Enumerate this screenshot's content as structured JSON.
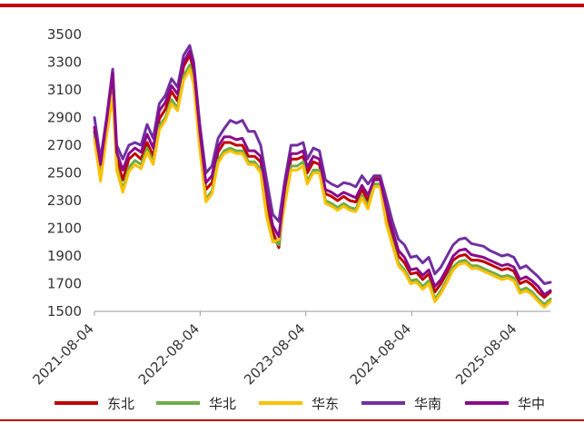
{
  "chart_data": {
    "type": "line",
    "title": "",
    "xlabel": "",
    "ylabel": "",
    "x_ticks": [
      "2021-08-04",
      "2022-08-04",
      "2023-08-04",
      "2024-08-04",
      "2025-08-04"
    ],
    "ylim": [
      1500,
      3500
    ],
    "y_ticks": [
      1500,
      1700,
      1900,
      2100,
      2300,
      2500,
      2700,
      2900,
      3100,
      3300,
      3500
    ],
    "grid": false,
    "legend": "bottom",
    "x": [
      "2021-08-04",
      "2021-08-25",
      "2021-09-15",
      "2021-10-06",
      "2021-10-20",
      "2021-11-10",
      "2021-12-01",
      "2021-12-22",
      "2022-01-12",
      "2022-02-02",
      "2022-02-23",
      "2022-03-16",
      "2022-04-06",
      "2022-04-27",
      "2022-05-18",
      "2022-06-08",
      "2022-06-29",
      "2022-07-13",
      "2022-08-03",
      "2022-08-24",
      "2022-09-14",
      "2022-10-05",
      "2022-10-26",
      "2022-11-16",
      "2022-12-07",
      "2022-12-28",
      "2023-01-18",
      "2023-02-08",
      "2023-03-01",
      "2023-03-22",
      "2023-04-12",
      "2023-05-03",
      "2023-05-24",
      "2023-06-14",
      "2023-07-05",
      "2023-07-26",
      "2023-08-09",
      "2023-08-30",
      "2023-09-20",
      "2023-10-11",
      "2023-11-01",
      "2023-11-22",
      "2023-12-13",
      "2024-01-03",
      "2024-01-24",
      "2024-02-14",
      "2024-03-06",
      "2024-03-27",
      "2024-04-17",
      "2024-05-08",
      "2024-05-29",
      "2024-06-19",
      "2024-07-10",
      "2024-07-31",
      "2024-08-21",
      "2024-09-11",
      "2024-10-02",
      "2024-10-23",
      "2024-11-13",
      "2024-12-04",
      "2024-12-25",
      "2025-01-15",
      "2025-02-05",
      "2025-02-26",
      "2025-03-19",
      "2025-04-09",
      "2025-04-30",
      "2025-05-21",
      "2025-06-11",
      "2025-07-02",
      "2025-07-23",
      "2025-08-13",
      "2025-09-03",
      "2025-09-24",
      "2025-10-15",
      "2025-11-05",
      "2025-11-26"
    ],
    "series": [
      {
        "name": "东北",
        "color": "#c00000",
        "values": [
          2800,
          2530,
          2850,
          3180,
          2600,
          2450,
          2600,
          2640,
          2600,
          2720,
          2620,
          2890,
          2960,
          3090,
          3020,
          3270,
          3350,
          3240,
          2750,
          2380,
          2430,
          2650,
          2720,
          2720,
          2700,
          2700,
          2620,
          2620,
          2580,
          2300,
          2080,
          1960,
          2350,
          2600,
          2600,
          2620,
          2500,
          2580,
          2560,
          2350,
          2330,
          2300,
          2330,
          2300,
          2290,
          2380,
          2300,
          2460,
          2460,
          2200,
          2050,
          1900,
          1850,
          1770,
          1780,
          1730,
          1770,
          1640,
          1700,
          1780,
          1870,
          1900,
          1910,
          1870,
          1870,
          1860,
          1840,
          1820,
          1800,
          1810,
          1790,
          1700,
          1720,
          1690,
          1640,
          1600,
          1640
        ]
      },
      {
        "name": "华北",
        "color": "#70ad47",
        "values": [
          2770,
          2470,
          2800,
          3100,
          2550,
          2380,
          2540,
          2590,
          2560,
          2680,
          2580,
          2840,
          2900,
          3030,
          2970,
          3200,
          3280,
          3170,
          2700,
          2310,
          2370,
          2590,
          2660,
          2680,
          2660,
          2660,
          2580,
          2580,
          2520,
          2200,
          2020,
          1980,
          2300,
          2550,
          2550,
          2580,
          2440,
          2520,
          2520,
          2300,
          2280,
          2250,
          2280,
          2250,
          2240,
          2340,
          2260,
          2420,
          2420,
          2150,
          2000,
          1850,
          1800,
          1720,
          1730,
          1680,
          1720,
          1590,
          1650,
          1730,
          1820,
          1860,
          1870,
          1830,
          1830,
          1810,
          1790,
          1770,
          1750,
          1760,
          1740,
          1650,
          1670,
          1640,
          1590,
          1550,
          1590
        ]
      },
      {
        "name": "华东",
        "color": "#ffc000",
        "values": [
          2740,
          2440,
          2770,
          3060,
          2520,
          2360,
          2510,
          2560,
          2530,
          2650,
          2560,
          2810,
          2880,
          3000,
          2950,
          3170,
          3250,
          3140,
          2670,
          2290,
          2350,
          2570,
          2640,
          2660,
          2640,
          2640,
          2560,
          2560,
          2500,
          2180,
          2000,
          2020,
          2280,
          2520,
          2520,
          2550,
          2420,
          2500,
          2500,
          2280,
          2260,
          2230,
          2260,
          2230,
          2220,
          2320,
          2240,
          2400,
          2400,
          2130,
          1980,
          1830,
          1780,
          1700,
          1710,
          1660,
          1700,
          1570,
          1630,
          1710,
          1800,
          1840,
          1850,
          1810,
          1810,
          1790,
          1770,
          1750,
          1730,
          1740,
          1720,
          1630,
          1650,
          1620,
          1570,
          1530,
          1570
        ]
      },
      {
        "name": "华南",
        "color": "#7030a0",
        "values": [
          2900,
          2600,
          2900,
          3250,
          2700,
          2600,
          2700,
          2720,
          2700,
          2850,
          2750,
          3000,
          3060,
          3180,
          3120,
          3350,
          3420,
          3300,
          2850,
          2500,
          2550,
          2750,
          2820,
          2880,
          2860,
          2880,
          2800,
          2800,
          2700,
          2450,
          2200,
          2150,
          2450,
          2700,
          2700,
          2720,
          2600,
          2680,
          2660,
          2450,
          2420,
          2400,
          2430,
          2420,
          2400,
          2480,
          2420,
          2480,
          2480,
          2320,
          2150,
          2020,
          1980,
          1890,
          1900,
          1850,
          1890,
          1770,
          1820,
          1900,
          1980,
          2020,
          2030,
          1990,
          1980,
          1970,
          1940,
          1920,
          1900,
          1910,
          1890,
          1810,
          1830,
          1790,
          1750,
          1700,
          1710
        ]
      },
      {
        "name": "华中",
        "color": "#8b0a8b",
        "values": [
          2830,
          2560,
          2880,
          3220,
          2650,
          2520,
          2640,
          2680,
          2650,
          2780,
          2680,
          2950,
          3010,
          3130,
          3070,
          3300,
          3380,
          3270,
          2800,
          2430,
          2480,
          2690,
          2760,
          2760,
          2740,
          2750,
          2660,
          2660,
          2620,
          2350,
          2120,
          2040,
          2400,
          2640,
          2640,
          2660,
          2540,
          2620,
          2600,
          2380,
          2360,
          2330,
          2360,
          2340,
          2320,
          2410,
          2340,
          2450,
          2450,
          2250,
          2090,
          1940,
          1890,
          1800,
          1810,
          1760,
          1800,
          1680,
          1730,
          1810,
          1900,
          1940,
          1950,
          1910,
          1900,
          1890,
          1870,
          1850,
          1830,
          1840,
          1820,
          1730,
          1750,
          1720,
          1680,
          1620,
          1650
        ]
      }
    ]
  }
}
